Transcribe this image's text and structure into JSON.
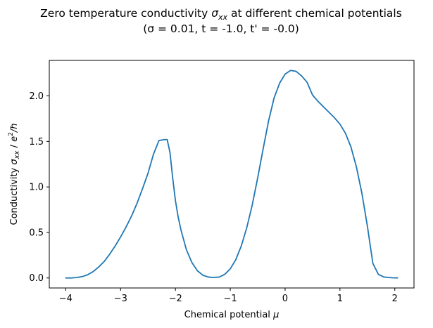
{
  "chart_data": {
    "type": "line",
    "title_line1_prefix": "Zero temperature conductivity ",
    "title_line1_symbol": "σ",
    "title_line1_subscript": "xx",
    "title_line1_suffix": " at different chemical potentials",
    "title_line2": "(σ = 0.01, t = -1.0, t' = -0.0)",
    "xlabel_text": "Chemical potential ",
    "xlabel_symbol": "μ",
    "ylabel_text": "Conductivity ",
    "ylabel_symbol": "σ",
    "ylabel_subscript": "xx",
    "ylabel_sep": " / ",
    "ylabel_e": "e",
    "ylabel_exp": "2",
    "ylabel_h": "/h",
    "xlim": [
      -4.3,
      2.35
    ],
    "ylim": [
      -0.11,
      2.39
    ],
    "xticks": [
      -4,
      -3,
      -2,
      -1,
      0,
      1,
      2
    ],
    "xtick_labels": [
      "−4",
      "−3",
      "−2",
      "−1",
      "0",
      "1",
      "2"
    ],
    "yticks": [
      0.0,
      0.5,
      1.0,
      1.5,
      2.0
    ],
    "ytick_labels": [
      "0.0",
      "0.5",
      "1.0",
      "1.5",
      "2.0"
    ],
    "grid": false,
    "series": [
      {
        "color": "#1f77b4",
        "x": [
          -4.0,
          -3.9,
          -3.8,
          -3.7,
          -3.6,
          -3.5,
          -3.4,
          -3.3,
          -3.2,
          -3.1,
          -3.0,
          -2.9,
          -2.8,
          -2.7,
          -2.6,
          -2.5,
          -2.4,
          -2.3,
          -2.2,
          -2.15,
          -2.1,
          -2.05,
          -2.0,
          -1.95,
          -1.9,
          -1.8,
          -1.7,
          -1.6,
          -1.5,
          -1.4,
          -1.3,
          -1.2,
          -1.1,
          -1.0,
          -0.9,
          -0.8,
          -0.7,
          -0.6,
          -0.5,
          -0.4,
          -0.3,
          -0.2,
          -0.1,
          0.0,
          0.1,
          0.2,
          0.3,
          0.4,
          0.45,
          0.5,
          0.6,
          0.7,
          0.8,
          0.9,
          1.0,
          1.1,
          1.2,
          1.3,
          1.4,
          1.5,
          1.6,
          1.7,
          1.8,
          1.9,
          1.95,
          2.0,
          2.05
        ],
        "y": [
          0.0,
          0.0,
          0.005,
          0.015,
          0.035,
          0.07,
          0.12,
          0.18,
          0.26,
          0.35,
          0.45,
          0.56,
          0.68,
          0.82,
          0.98,
          1.15,
          1.36,
          1.51,
          1.52,
          1.52,
          1.38,
          1.1,
          0.85,
          0.67,
          0.53,
          0.31,
          0.17,
          0.08,
          0.03,
          0.01,
          0.005,
          0.01,
          0.04,
          0.1,
          0.2,
          0.35,
          0.55,
          0.8,
          1.1,
          1.42,
          1.73,
          1.98,
          2.14,
          2.24,
          2.28,
          2.27,
          2.22,
          2.15,
          2.08,
          2.01,
          1.94,
          1.88,
          1.82,
          1.76,
          1.69,
          1.59,
          1.44,
          1.22,
          0.93,
          0.57,
          0.16,
          0.04,
          0.01,
          0.005,
          0.002,
          0.001,
          0.0
        ]
      }
    ]
  }
}
